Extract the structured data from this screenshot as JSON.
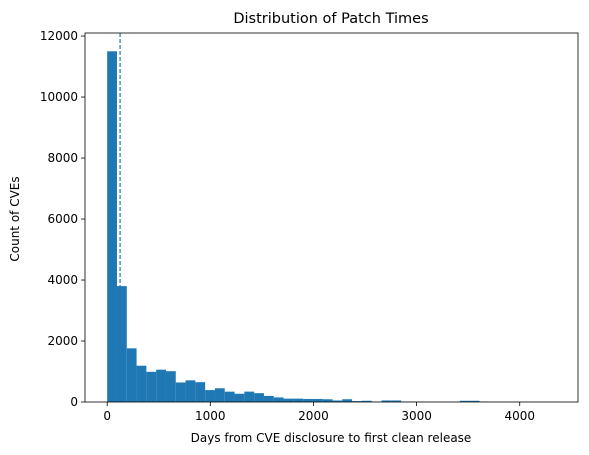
{
  "chart_data": {
    "type": "bar",
    "title": "Distribution of Patch Times",
    "xlabel": "Days from CVE disclosure to first clean release",
    "ylabel": "Count of CVEs",
    "xlim": [
      -215,
      4565
    ],
    "ylim": [
      0,
      12100
    ],
    "xticks": [
      0,
      1000,
      2000,
      3000,
      4000
    ],
    "yticks": [
      0,
      2000,
      4000,
      6000,
      8000,
      10000,
      12000
    ],
    "xtick_labels": [
      "0",
      "1000",
      "2000",
      "3000",
      "4000"
    ],
    "ytick_labels": [
      "0",
      "2000",
      "4000",
      "6000",
      "8000",
      "10000",
      "12000"
    ],
    "bin_edges_start": 0,
    "bin_width": 95,
    "bin_counts": [
      11500,
      3800,
      1760,
      1190,
      990,
      1060,
      1010,
      640,
      710,
      650,
      390,
      450,
      340,
      270,
      340,
      290,
      200,
      150,
      110,
      110,
      100,
      100,
      90,
      50,
      90,
      30,
      40,
      10,
      50,
      50,
      10,
      10,
      5,
      5,
      5,
      5,
      40,
      40,
      10,
      5,
      5,
      5,
      5,
      5,
      5,
      5
    ],
    "bar_color": "#1f77b4",
    "reference_line": {
      "x": 125,
      "style": "dashed",
      "color": "#1f77b4"
    },
    "grid": false,
    "legend": "none"
  }
}
